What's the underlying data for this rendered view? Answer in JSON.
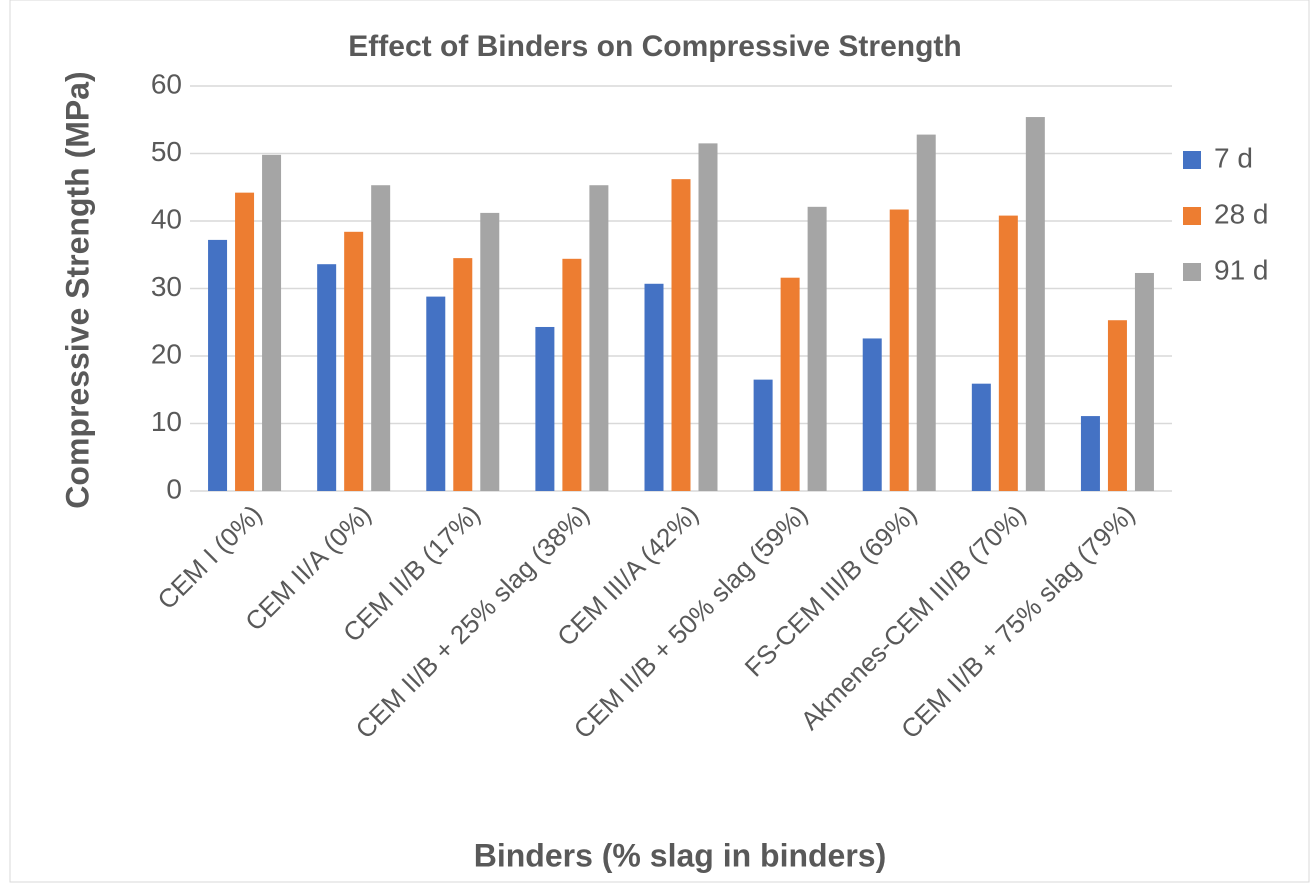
{
  "chart_data": {
    "type": "bar",
    "title": "Effect of Binders on Compressive Strength",
    "x_label": "Binders (% slag in binders)",
    "y_label": "Compressive Strength (MPa)",
    "categories": [
      "CEM I (0%)",
      "CEM II/A (0%)",
      "CEM II/B (17%)",
      "CEM II/B + 25% slag (38%)",
      "CEM III/A (42%)",
      "CEM II/B + 50% slag (59%)",
      "FS-CEM III/B (69%)",
      "Akmenes-CEM III/B (70%)",
      "CEM II/B + 75% slag (79%)"
    ],
    "series": [
      {
        "name": "7 d",
        "color": "#4472c4",
        "values": [
          37.2,
          33.6,
          28.8,
          24.3,
          30.7,
          16.5,
          22.6,
          15.9,
          11.1
        ]
      },
      {
        "name": "28 d",
        "color": "#ed7d31",
        "values": [
          44.2,
          38.4,
          34.5,
          34.4,
          46.2,
          31.6,
          41.7,
          40.8,
          25.3
        ]
      },
      {
        "name": "91 d",
        "color": "#a5a5a5",
        "values": [
          49.8,
          45.3,
          41.2,
          45.3,
          51.5,
          42.1,
          52.8,
          55.4,
          32.3
        ]
      }
    ],
    "ylim": [
      0,
      60
    ],
    "yticks": [
      0,
      10,
      20,
      30,
      40,
      50,
      60
    ],
    "grid": true,
    "legend": "right"
  }
}
